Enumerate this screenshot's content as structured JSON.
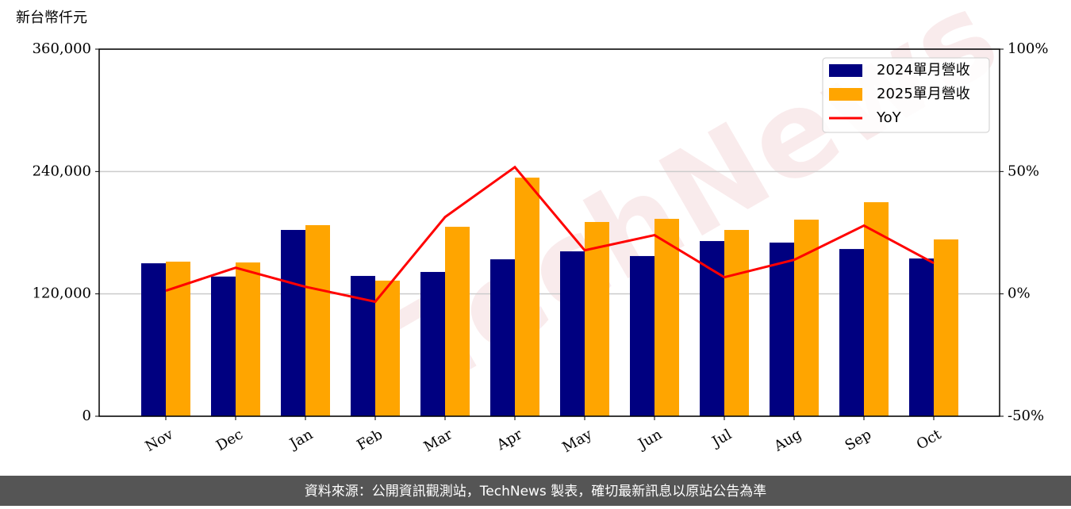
{
  "chart_data": {
    "type": "bar_line",
    "y_label": "新台幣仟元",
    "watermark": "TechNews",
    "source": "資料來源：公開資訊觀測站，TechNews 製表，確切最新訊息以原站公告為準",
    "categories": [
      "Nov",
      "Dec",
      "Jan",
      "Feb",
      "Mar",
      "Apr",
      "May",
      "Jun",
      "Jul",
      "Aug",
      "Sep",
      "Oct"
    ],
    "series": [
      {
        "name": "2024單月營收",
        "color": "#000080",
        "type": "bar",
        "values": [
          150000,
          137000,
          182700,
          137600,
          141500,
          153900,
          161700,
          157100,
          171800,
          170300,
          164000,
          154700
        ]
      },
      {
        "name": "2025單月營收",
        "color": "#ffa500",
        "type": "bar",
        "values": [
          151600,
          150800,
          187400,
          133000,
          185800,
          234000,
          190500,
          193600,
          182700,
          192800,
          209900,
          173400
        ]
      },
      {
        "name": "YoY",
        "color": "#ff0000",
        "type": "line",
        "axis": "y2",
        "values": [
          1.3,
          10.7,
          2.9,
          -3.2,
          31.4,
          51.8,
          17.8,
          24.0,
          6.8,
          13.9,
          27.9,
          12.6
        ]
      }
    ],
    "ylim": [
      0,
      360000
    ],
    "yticks": [
      0,
      {
        "value": 120000,
        "label": "120,000"
      },
      {
        "value": 240000,
        "label": "240,000"
      },
      {
        "value": 360000,
        "label": "360,000"
      }
    ],
    "y2lim": [
      -50,
      100
    ],
    "y2ticks": [
      {
        "value": -50,
        "label": "-50%"
      },
      {
        "value": 0,
        "label": "0%"
      },
      {
        "value": 50,
        "label": "50%"
      },
      {
        "value": 100,
        "label": "100%"
      }
    ],
    "grid": true,
    "legend": "upper right"
  }
}
